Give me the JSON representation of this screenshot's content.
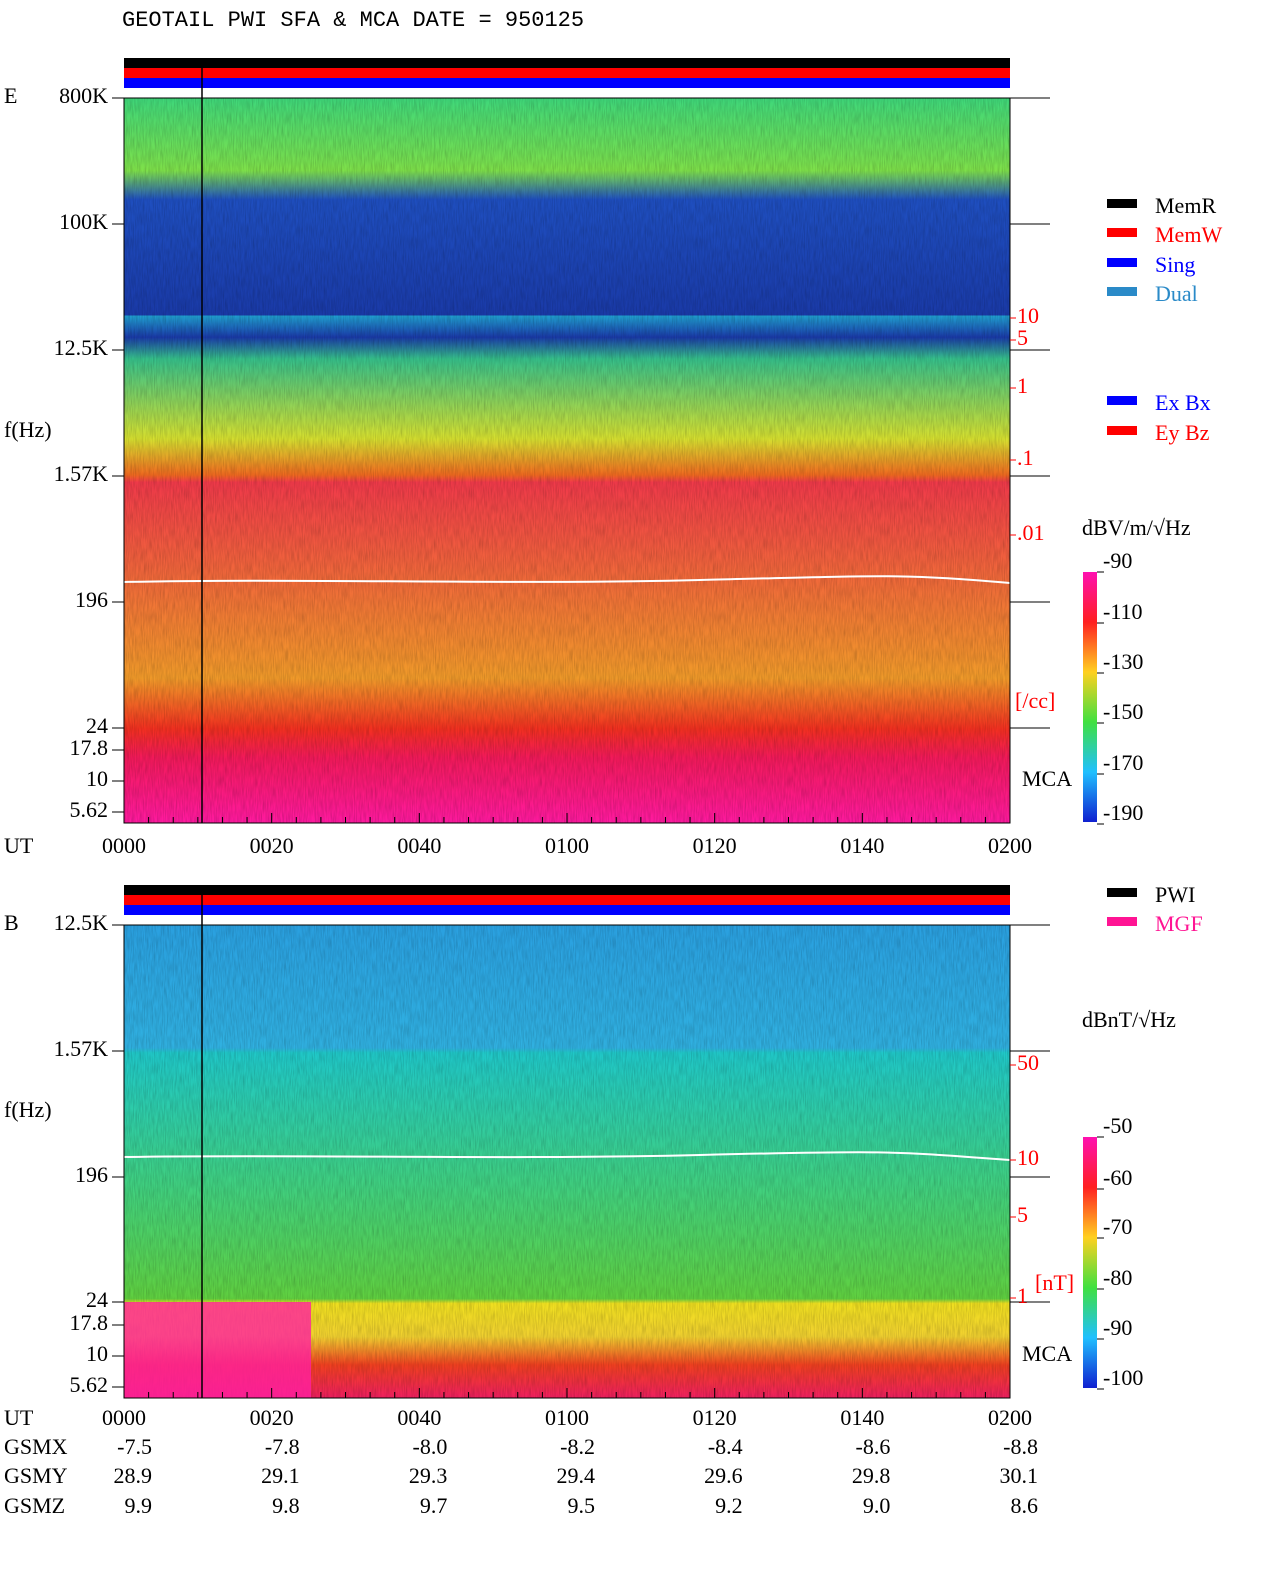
{
  "title": "GEOTAIL  PWI SFA & MCA   DATE = 950125",
  "panels": [
    {
      "label": "E",
      "y_label": "f(Hz)",
      "freq_ticks": [
        "800K",
        "100K",
        "12.5K",
        "1.57K",
        "196",
        "24",
        "17.8",
        "10",
        "5.62"
      ],
      "density_ticks": [
        "10",
        "5",
        "1",
        ".1",
        ".01"
      ],
      "density_unit": "[/cc]",
      "mca": "MCA",
      "colorbar_unit": "dBV/m/√Hz",
      "colorbar_ticks": [
        "-90",
        "-110",
        "-130",
        "-150",
        "-170",
        "-190"
      ],
      "time_label": "UT",
      "times": [
        "0000",
        "0020",
        "0040",
        "0100",
        "0120",
        "0140",
        "0200"
      ]
    },
    {
      "label": "B",
      "y_label": "f(Hz)",
      "freq_ticks": [
        "12.5K",
        "1.57K",
        "196",
        "24",
        "17.8",
        "10",
        "5.62"
      ],
      "density_ticks": [
        "50",
        "10",
        "5",
        "1"
      ],
      "density_unit": "[nT]",
      "mca": "MCA",
      "colorbar_unit": "dBnT/√Hz",
      "colorbar_ticks": [
        "-50",
        "-60",
        "-70",
        "-80",
        "-90",
        "-100"
      ],
      "time_label": "UT",
      "times": [
        "0000",
        "0020",
        "0040",
        "0100",
        "0120",
        "0140",
        "0200"
      ]
    }
  ],
  "legend_modes": [
    "MemR",
    "MemW",
    "Sing",
    "Dual"
  ],
  "legend_components": [
    "Ex Bx",
    "Ey Bz"
  ],
  "legend_sources": [
    "PWI",
    "MGF"
  ],
  "orbit": [
    {
      "name": "GSMX",
      "values": [
        "-7.5",
        "-7.8",
        "-8.0",
        "-8.2",
        "-8.4",
        "-8.6",
        "-8.8"
      ]
    },
    {
      "name": "GSMY",
      "values": [
        "28.9",
        "29.1",
        "29.3",
        "29.4",
        "29.6",
        "29.8",
        "30.1"
      ]
    },
    {
      "name": "GSMZ",
      "values": [
        "9.9",
        "9.8",
        "9.7",
        "9.5",
        "9.2",
        "9.0",
        "8.6"
      ]
    }
  ]
}
